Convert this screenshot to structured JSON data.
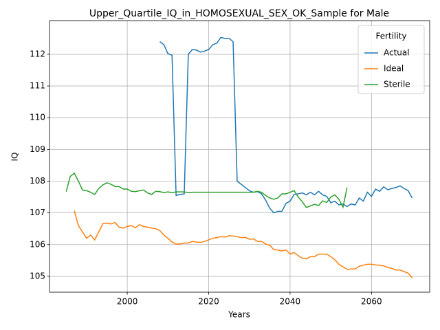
{
  "chart_data": {
    "type": "line",
    "title": "Upper_Quartile_IQ_in_HOMOSEXUAL_SEX_OK_Sample for Male",
    "x_label": "Years",
    "y_label": "IQ",
    "legend_title": "Fertility",
    "legend_position": "upper right",
    "grid": true,
    "xlim": [
      1980.9,
      2074.3
    ],
    "ylim": [
      104.5,
      113.06
    ],
    "xticks": [
      2000,
      2020,
      2040,
      2060
    ],
    "yticks": [
      105,
      106,
      107,
      108,
      109,
      110,
      111,
      112
    ],
    "x": [
      1985,
      1986,
      1987,
      1988,
      1989,
      1990,
      1991,
      1992,
      1993,
      1994,
      1995,
      1996,
      1997,
      1998,
      1999,
      2000,
      2001,
      2002,
      2003,
      2004,
      2005,
      2006,
      2007,
      2008,
      2009,
      2010,
      2011,
      2012,
      2013,
      2014,
      2015,
      2016,
      2017,
      2018,
      2019,
      2020,
      2021,
      2022,
      2023,
      2024,
      2025,
      2026,
      2027,
      2028,
      2029,
      2030,
      2031,
      2032,
      2033,
      2034,
      2035,
      2036,
      2037,
      2038,
      2039,
      2040,
      2041,
      2042,
      2043,
      2044,
      2045,
      2046,
      2047,
      2048,
      2049,
      2050,
      2051,
      2052,
      2053,
      2054,
      2055,
      2056,
      2057,
      2058,
      2059,
      2060,
      2061,
      2062,
      2063,
      2064,
      2065,
      2066,
      2067,
      2068,
      2069,
      2070
    ],
    "series": [
      {
        "name": "Actual",
        "color": "#1f77b4",
        "values": [
          null,
          null,
          null,
          null,
          null,
          null,
          null,
          null,
          null,
          null,
          null,
          null,
          null,
          null,
          null,
          null,
          null,
          null,
          null,
          null,
          null,
          null,
          null,
          112.4,
          112.3,
          112.02,
          111.97,
          107.55,
          107.58,
          107.6,
          112.0,
          112.15,
          112.13,
          112.07,
          112.1,
          112.15,
          112.3,
          112.35,
          112.53,
          112.5,
          112.5,
          112.4,
          108.0,
          107.9,
          107.8,
          107.7,
          107.65,
          107.67,
          107.6,
          107.4,
          107.15,
          107.0,
          107.05,
          107.05,
          107.3,
          107.37,
          107.58,
          107.6,
          107.63,
          107.57,
          107.65,
          107.57,
          107.68,
          107.57,
          107.52,
          107.32,
          107.37,
          107.25,
          107.28,
          107.2,
          107.28,
          107.25,
          107.47,
          107.37,
          107.65,
          107.52,
          107.75,
          107.68,
          107.82,
          107.73,
          107.77,
          107.8,
          107.85,
          107.77,
          107.7,
          107.47
        ]
      },
      {
        "name": "Ideal",
        "color": "#ff7f0e",
        "values": [
          null,
          null,
          107.07,
          106.6,
          106.4,
          106.2,
          106.3,
          106.15,
          106.4,
          106.66,
          106.68,
          106.65,
          106.7,
          106.55,
          106.52,
          106.57,
          106.6,
          106.53,
          106.63,
          106.57,
          106.55,
          106.52,
          106.5,
          106.44,
          106.3,
          106.2,
          106.08,
          106.02,
          106.02,
          106.05,
          106.05,
          106.1,
          106.08,
          106.07,
          106.1,
          106.15,
          106.2,
          106.22,
          106.25,
          106.24,
          106.28,
          106.27,
          106.25,
          106.22,
          106.23,
          106.17,
          106.18,
          106.1,
          106.1,
          106.02,
          105.98,
          105.84,
          105.83,
          105.8,
          105.83,
          105.7,
          105.75,
          105.65,
          105.57,
          105.55,
          105.62,
          105.62,
          105.7,
          105.7,
          105.7,
          105.62,
          105.52,
          105.38,
          105.3,
          105.22,
          105.23,
          105.23,
          105.32,
          105.35,
          105.38,
          105.38,
          105.36,
          105.35,
          105.33,
          105.28,
          105.25,
          105.2,
          105.2,
          105.15,
          105.1,
          104.95
        ]
      },
      {
        "name": "Sterile",
        "color": "#2ca02c",
        "values": [
          107.67,
          108.15,
          108.25,
          108.0,
          107.72,
          107.7,
          107.65,
          107.58,
          107.77,
          107.88,
          107.95,
          107.9,
          107.83,
          107.83,
          107.75,
          107.75,
          107.68,
          107.67,
          107.7,
          107.72,
          107.63,
          107.58,
          107.68,
          107.67,
          107.64,
          107.66,
          107.64,
          107.66,
          107.66,
          107.66,
          107.64,
          107.65,
          107.65,
          107.65,
          107.65,
          107.65,
          107.65,
          107.65,
          107.65,
          107.65,
          107.65,
          107.65,
          107.65,
          107.65,
          107.65,
          107.65,
          107.65,
          107.68,
          107.65,
          107.55,
          107.47,
          107.43,
          107.47,
          107.6,
          107.6,
          107.65,
          107.7,
          107.5,
          107.35,
          107.17,
          107.22,
          107.27,
          107.23,
          107.38,
          107.33,
          107.5,
          107.57,
          107.43,
          107.18,
          107.8,
          null,
          null,
          null,
          null,
          null,
          null,
          null,
          null,
          null,
          null,
          null,
          null,
          null,
          null,
          null,
          null
        ]
      }
    ]
  }
}
